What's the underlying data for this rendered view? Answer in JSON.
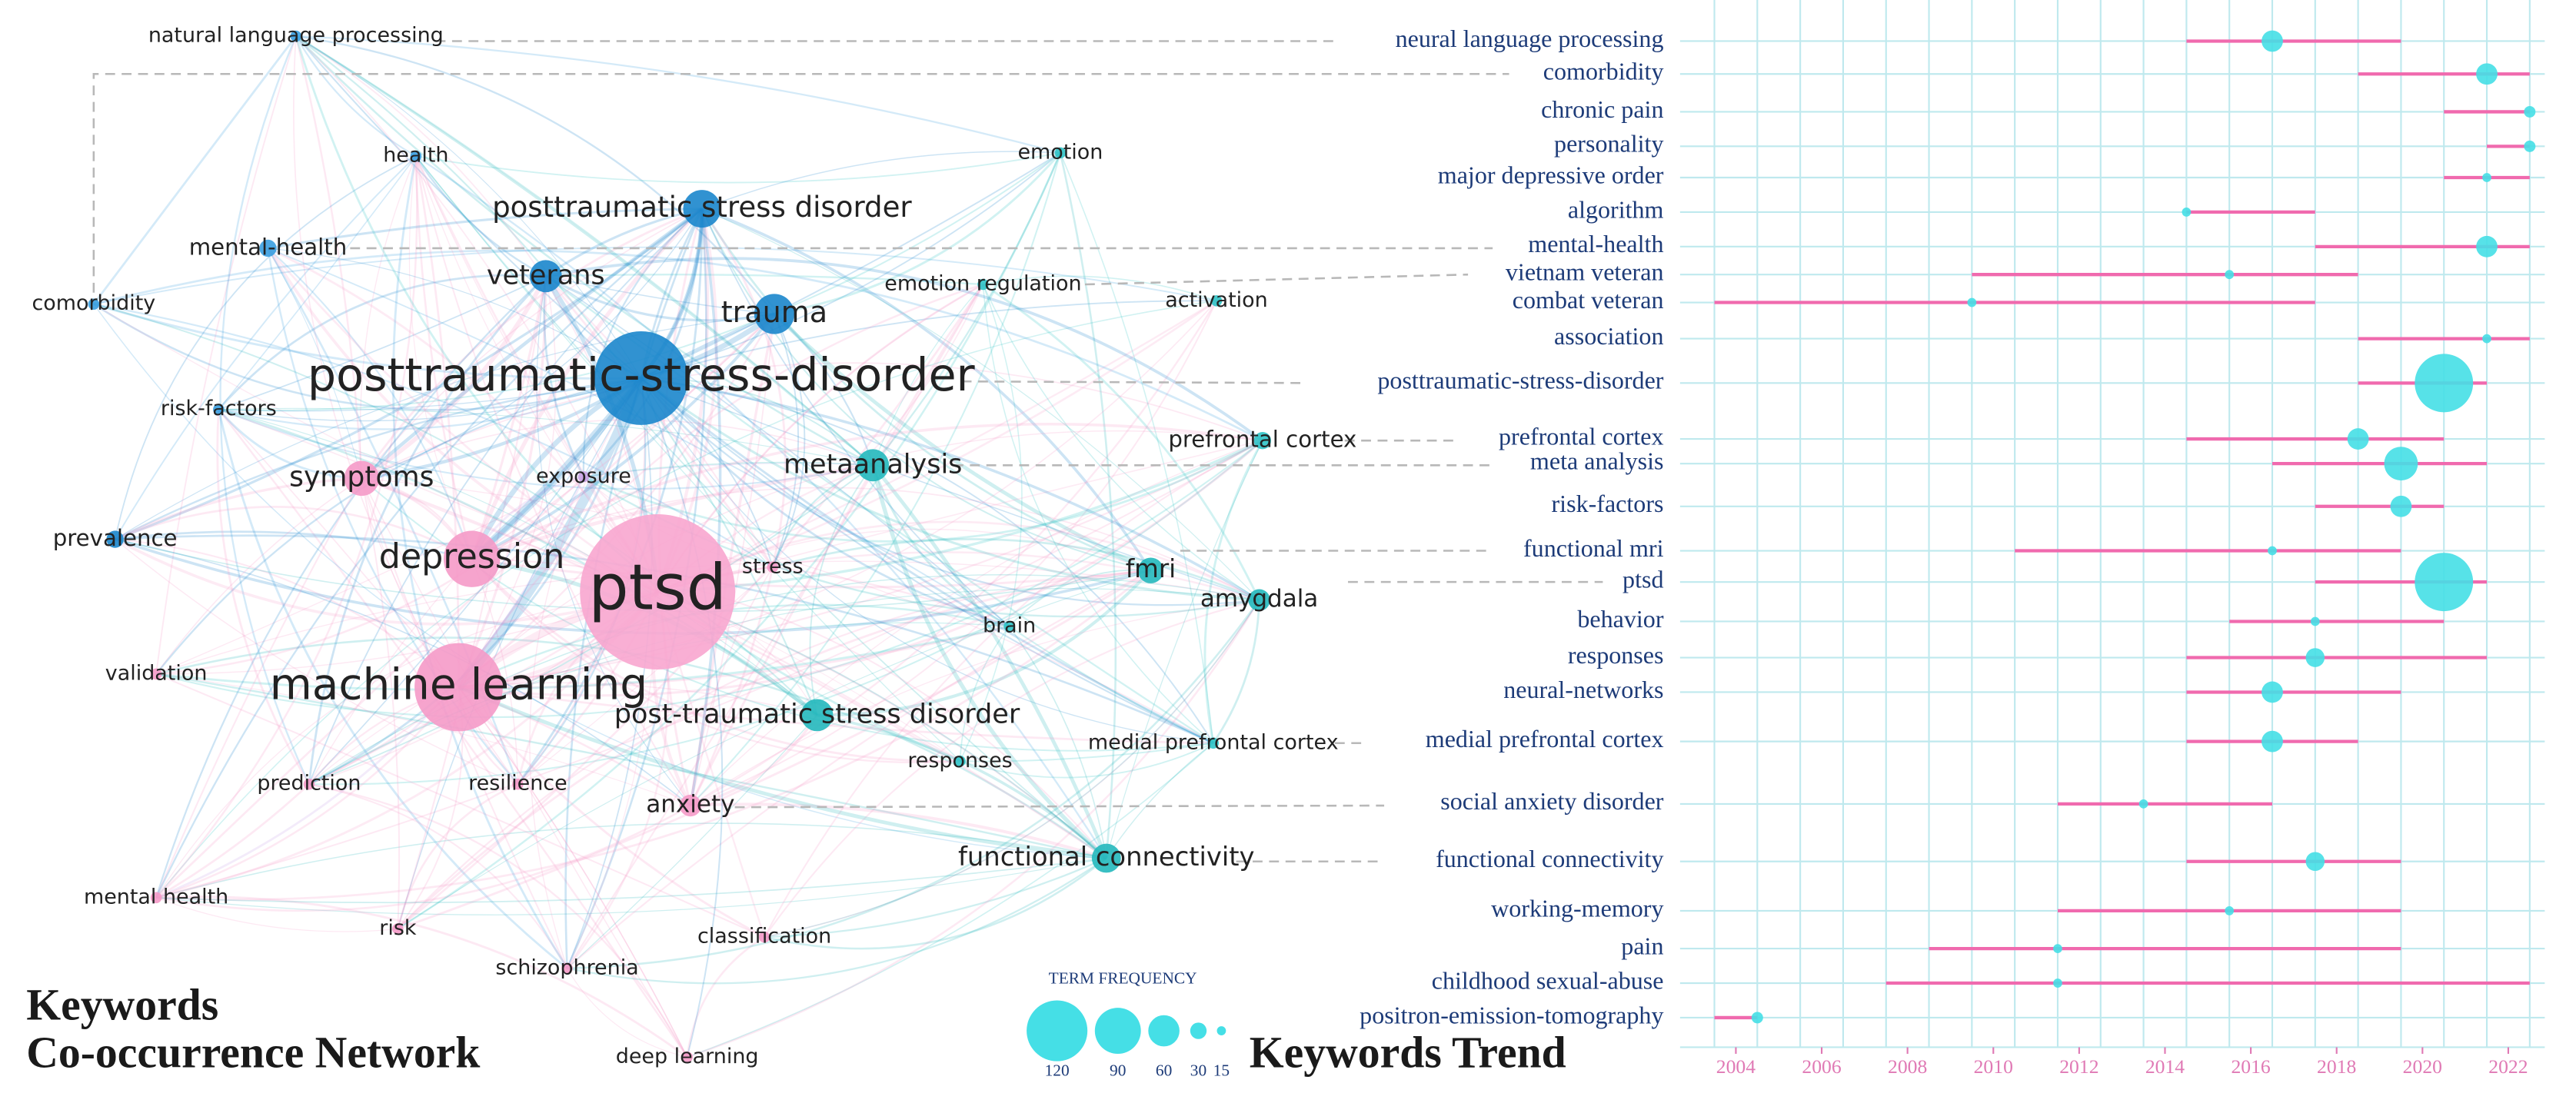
{
  "chart_data": [
    {
      "type": "network",
      "title": [
        "Keywords",
        "Co-occurrence Network"
      ],
      "nodes": [
        {
          "label": "natural language processing",
          "color": "#3a9ee0",
          "frequency": 1
        },
        {
          "label": "health",
          "color": "#3a9ee0",
          "frequency": 1
        },
        {
          "label": "posttraumatic stress disorder",
          "color": "#1b86cc",
          "frequency": 8
        },
        {
          "label": "emotion",
          "color": "#2fc3c6",
          "frequency": 1
        },
        {
          "label": "mental-health",
          "color": "#3a9ee0",
          "frequency": 2
        },
        {
          "label": "veterans",
          "color": "#1b86cc",
          "frequency": 6
        },
        {
          "label": "trauma",
          "color": "#1b86cc",
          "frequency": 9
        },
        {
          "label": "emotion regulation",
          "color": "#2fc3c6",
          "frequency": 1
        },
        {
          "label": "activation",
          "color": "#2fc3c6",
          "frequency": 1
        },
        {
          "label": "comorbidity",
          "color": "#3a9ee0",
          "frequency": 1
        },
        {
          "label": "posttraumatic-stress-disorder",
          "color": "#1b86cc",
          "frequency": 45
        },
        {
          "label": "risk-factors",
          "color": "#3a9ee0",
          "frequency": 1
        },
        {
          "label": "prefrontal cortex",
          "color": "#2fc3c6",
          "frequency": 2
        },
        {
          "label": "symptoms",
          "color": "#f59ac8",
          "frequency": 7
        },
        {
          "label": "exposure",
          "color": "#c9a3e6",
          "frequency": 1
        },
        {
          "label": "metaanalysis",
          "color": "#24b8bc",
          "frequency": 6
        },
        {
          "label": "prevalence",
          "color": "#1b86cc",
          "frequency": 2
        },
        {
          "label": "depression",
          "color": "#f59ac8",
          "frequency": 17
        },
        {
          "label": "ptsd",
          "color": "#f8a6cf",
          "frequency": 120
        },
        {
          "label": "stress",
          "color": "#f59ac8",
          "frequency": 1
        },
        {
          "label": "fmri",
          "color": "#24b8bc",
          "frequency": 4
        },
        {
          "label": "amygdala",
          "color": "#24b8bc",
          "frequency": 3
        },
        {
          "label": "validation",
          "color": "#f59ac8",
          "frequency": 1
        },
        {
          "label": "brain",
          "color": "#2fc3c6",
          "frequency": 1
        },
        {
          "label": "machine learning",
          "color": "#f59ac8",
          "frequency": 40
        },
        {
          "label": "post-traumatic stress disorder",
          "color": "#24b8bc",
          "frequency": 6
        },
        {
          "label": "prediction",
          "color": "#f59ac8",
          "frequency": 1
        },
        {
          "label": "resilience",
          "color": "#f59ac8",
          "frequency": 1
        },
        {
          "label": "responses",
          "color": "#2fc3c6",
          "frequency": 1
        },
        {
          "label": "medial prefrontal cortex",
          "color": "#2fc3c6",
          "frequency": 1
        },
        {
          "label": "anxiety",
          "color": "#f59ac8",
          "frequency": 3
        },
        {
          "label": "functional connectivity",
          "color": "#24b8bc",
          "frequency": 5
        },
        {
          "label": "mental health",
          "color": "#f59ac8",
          "frequency": 1
        },
        {
          "label": "risk",
          "color": "#f59ac8",
          "frequency": 1
        },
        {
          "label": "classification",
          "color": "#f59ac8",
          "frequency": 1
        },
        {
          "label": "schizophrenia",
          "color": "#f59ac8",
          "frequency": 1
        },
        {
          "label": "deep learning",
          "color": "#f59ac8",
          "frequency": 1
        }
      ]
    },
    {
      "type": "range",
      "title": "Keywords Trend",
      "categories": [
        "neural language processing",
        "comorbidity",
        "chronic pain",
        "personality",
        "major depressive order",
        "algorithm",
        "mental-health",
        "vietnam veteran",
        "combat veteran",
        "association",
        "posttraumatic-stress-disorder",
        "prefrontal cortex",
        "meta analysis",
        "risk-factors",
        "functional mri",
        "ptsd",
        "behavior",
        "responses",
        "neural-networks",
        "medial prefrontal cortex",
        "social anxiety disorder",
        "functional connectivity",
        "working-memory",
        "pain",
        "childhood sexual-abuse",
        "positron-emission-tomography"
      ],
      "start": [
        2014.5,
        2018.5,
        2020.5,
        2021.5,
        2020.5,
        2014.5,
        2017.5,
        2009.5,
        2003.5,
        2018.5,
        2018.5,
        2014.5,
        2016.5,
        2017.5,
        2010.5,
        2017.5,
        2015.5,
        2014.5,
        2014.5,
        2014.5,
        2011.5,
        2014.5,
        2011.5,
        2008.5,
        2007.5,
        2003.5
      ],
      "end": [
        2019.5,
        2022.5,
        2022.5,
        2022.5,
        2022.5,
        2017.5,
        2022.5,
        2018.5,
        2017.5,
        2022.5,
        2021.5,
        2020.5,
        2021.5,
        2020.5,
        2019.5,
        2021.5,
        2020.5,
        2021.5,
        2019.5,
        2018.5,
        2016.5,
        2019.5,
        2019.5,
        2019.5,
        2022.5,
        2004.5
      ],
      "peak": [
        2016.5,
        2021.5,
        2022.5,
        2022.5,
        2021.5,
        2014.5,
        2021.5,
        2015.5,
        2009.5,
        2021.5,
        2020.5,
        2018.5,
        2019.5,
        2019.5,
        2016.5,
        2020.5,
        2017.5,
        2017.5,
        2016.5,
        2016.5,
        2013.5,
        2017.5,
        2015.5,
        2011.5,
        2011.5,
        2004.5
      ],
      "frequency": [
        40,
        40,
        20,
        20,
        15,
        15,
        40,
        15,
        15,
        15,
        115,
        40,
        65,
        40,
        15,
        115,
        15,
        35,
        40,
        40,
        15,
        35,
        15,
        15,
        15,
        20
      ],
      "line_color": "#f06aae",
      "dot_color": "#45dfe6",
      "xlim": [
        2002.7,
        2022.85
      ],
      "xticks": [
        2004,
        2006,
        2008,
        2010,
        2012,
        2014,
        2016,
        2018,
        2020,
        2022
      ],
      "xgrid": [
        2003.5,
        2004.5,
        2005.5,
        2006.5,
        2007.5,
        2008.5,
        2009.5,
        2010.5,
        2011.5,
        2012.5,
        2013.5,
        2014.5,
        2015.5,
        2016.5,
        2017.5,
        2018.5,
        2019.5,
        2020.5,
        2021.5,
        2022.5
      ],
      "grid": true,
      "legend": {
        "title": "TERM FREQUENCY",
        "values": [
          120,
          90,
          60,
          30,
          15
        ]
      }
    }
  ]
}
